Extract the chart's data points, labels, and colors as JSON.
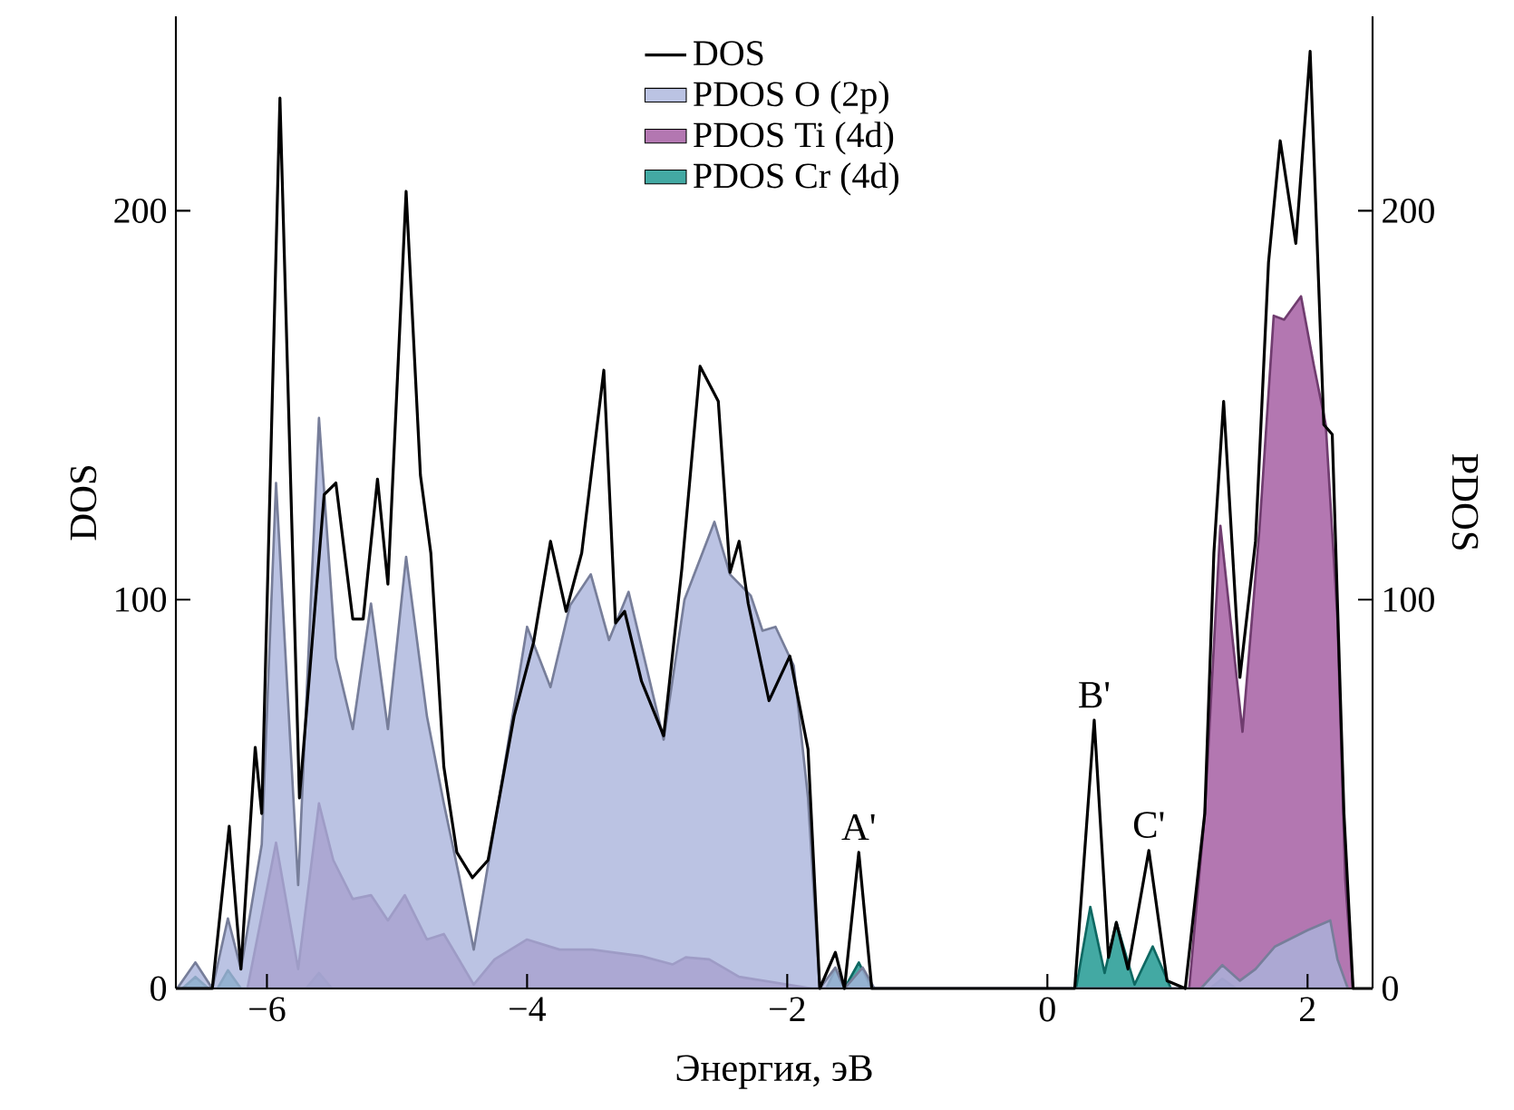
{
  "chart_data": {
    "type": "area",
    "xlabel": "Энергия, эВ",
    "ylabel": "DOS",
    "y2label": "PDOS",
    "xlim": [
      -6.7,
      2.5
    ],
    "xticks": [
      {
        "value": -6,
        "label": "−6"
      },
      {
        "value": -4,
        "label": "−4"
      },
      {
        "value": -2,
        "label": "−2"
      },
      0,
      2
    ],
    "ylim": [
      0,
      250
    ],
    "yticks": [
      0,
      100,
      200
    ],
    "y2lim": [
      0,
      250
    ],
    "y2ticks": [
      0,
      100,
      200
    ],
    "legend": "top",
    "annotations": [
      {
        "text": "A'",
        "x": -1.45,
        "y": 35
      },
      {
        "text": "B'",
        "x": 0.36,
        "y": 69
      },
      {
        "text": "C'",
        "x": 0.78,
        "y": 35.5
      }
    ],
    "series": [
      {
        "name": "PDOS O (2p)",
        "axis": "y2",
        "color": "#aab4dc",
        "x": [
          -6.69,
          -6.55,
          -6.42,
          -6.3,
          -6.2,
          -6.04,
          -5.93,
          -5.76,
          -5.6,
          -5.47,
          -5.34,
          -5.2,
          -5.07,
          -4.93,
          -4.77,
          -4.64,
          -4.52,
          -4.41,
          -4.25,
          -4.0,
          -3.82,
          -3.67,
          -3.51,
          -3.37,
          -3.22,
          -2.95,
          -2.79,
          -2.56,
          -2.44,
          -2.28,
          -2.19,
          -2.09,
          -1.95,
          -1.84,
          -1.75,
          -1.63,
          -1.56,
          -1.42,
          -1.33,
          1.18,
          1.345,
          1.48,
          1.6,
          1.75,
          2.0,
          2.175,
          2.23,
          2.31
        ],
        "values": [
          0,
          6.7,
          0,
          18,
          5,
          37,
          130,
          26.6,
          146.7,
          85,
          66.7,
          99,
          66.7,
          111,
          70,
          47.6,
          28.5,
          10,
          41.7,
          93,
          77.5,
          98.5,
          106.5,
          89.6,
          102,
          64,
          100,
          120,
          106.5,
          101,
          92,
          93,
          83,
          49,
          0,
          5.4,
          0,
          5.4,
          0,
          0,
          6,
          2,
          5,
          10.8,
          15,
          17.5,
          7.5,
          0
        ]
      },
      {
        "name": "PDOS Ti (4d)",
        "axis": "y2",
        "color": "#a0559e",
        "x": [
          -6.15,
          -5.93,
          -5.76,
          -5.6,
          -5.49,
          -5.34,
          -5.2,
          -5.07,
          -4.94,
          -4.77,
          -4.64,
          -4.41,
          -4.25,
          -4.0,
          -3.75,
          -3.5,
          -3.12,
          -2.88,
          -2.78,
          -2.6,
          -2.37,
          -1.81,
          1.09,
          1.21,
          1.33,
          1.5,
          1.63,
          1.74,
          1.82,
          1.95,
          2.05,
          2.14,
          2.23,
          2.29,
          2.35
        ],
        "values": [
          0,
          37.5,
          5,
          47.6,
          33,
          23,
          24,
          17.5,
          24,
          12.6,
          14,
          1,
          7.5,
          12.6,
          10,
          10,
          8.3,
          6.2,
          8,
          7.5,
          3,
          0,
          0,
          45,
          119,
          66,
          118,
          173,
          172,
          178,
          160,
          145,
          95,
          28,
          0
        ]
      },
      {
        "name": "PDOS Cr (4d)",
        "axis": "y2",
        "color": "#14948c",
        "x": [
          -6.65,
          -6.55,
          -6.45,
          -6.38,
          -6.3,
          -6.2,
          -5.7,
          -5.6,
          -5.5,
          -1.7,
          -1.63,
          -1.56,
          -1.45,
          -1.35,
          0.22,
          0.33,
          0.44,
          0.53,
          0.67,
          0.81,
          0.95,
          1.25,
          1.345,
          1.45
        ],
        "values": [
          0,
          3,
          0,
          0,
          4.7,
          0,
          0,
          4,
          0,
          0,
          5,
          0,
          6.7,
          0,
          0,
          21,
          4,
          17,
          1,
          10.8,
          0,
          0,
          2.5,
          0
        ]
      },
      {
        "name": "DOS",
        "type": "line",
        "color": "#000000",
        "x": [
          -6.7,
          -6.63,
          -6.42,
          -6.29,
          -6.2,
          -6.09,
          -6.04,
          -5.9,
          -5.75,
          -5.56,
          -5.47,
          -5.34,
          -5.26,
          -5.15,
          -5.07,
          -4.93,
          -4.82,
          -4.74,
          -4.64,
          -4.54,
          -4.42,
          -4.3,
          -4.1,
          -3.95,
          -3.82,
          -3.7,
          -3.58,
          -3.41,
          -3.32,
          -3.25,
          -3.12,
          -2.95,
          -2.81,
          -2.67,
          -2.6,
          -2.53,
          -2.44,
          -2.37,
          -2.3,
          -2.14,
          -1.98,
          -1.84,
          -1.75,
          -1.63,
          -1.56,
          -1.45,
          -1.35,
          0.21,
          0.36,
          0.47,
          0.53,
          0.62,
          0.78,
          0.92,
          1.06,
          1.21,
          1.28,
          1.355,
          1.48,
          1.6,
          1.7,
          1.79,
          1.91,
          2.02,
          2.125,
          2.19,
          2.28,
          2.35,
          2.5
        ],
        "values": [
          0,
          0,
          0,
          41.7,
          5,
          62,
          45,
          229,
          49,
          127,
          130,
          95,
          95,
          131,
          104,
          205,
          132,
          112,
          57,
          35,
          28.5,
          33,
          70,
          89,
          115,
          97,
          112,
          159,
          94,
          97,
          79,
          65,
          108,
          160,
          155.5,
          151,
          107,
          115,
          99,
          74,
          85.5,
          61.5,
          0,
          9.3,
          0,
          35,
          0,
          0,
          69,
          8,
          17,
          5,
          35.5,
          2,
          0,
          45,
          112,
          151,
          80,
          115,
          186.7,
          218,
          191.6,
          241,
          145,
          142.5,
          45,
          0,
          0
        ]
      }
    ]
  }
}
